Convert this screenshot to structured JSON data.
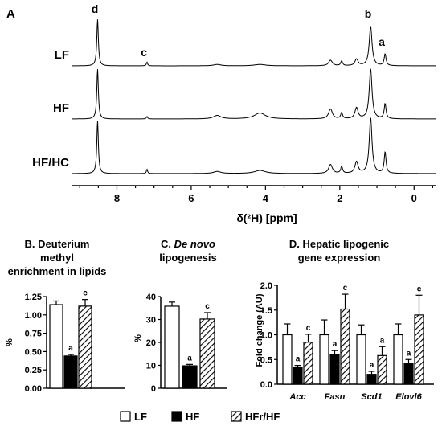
{
  "chart_data": [
    {
      "type": "line",
      "panel_label": "A",
      "xlabel": "δ(²H) [ppm]",
      "x_reversed": true,
      "xlim": [
        9.2,
        -0.6
      ],
      "x_ticks": [
        8,
        6,
        4,
        2,
        0
      ],
      "x_tick_labels": [
        "8",
        "6",
        "4",
        "2",
        "0"
      ],
      "grid": false,
      "peak_labels": [
        {
          "text": "d",
          "ppm": 8.5
        },
        {
          "text": "c",
          "ppm": 7.2
        },
        {
          "text": "b",
          "ppm": 1.15
        },
        {
          "text": "a",
          "ppm": 0.78
        }
      ],
      "series": [
        {
          "name": "LF",
          "peaks": [
            {
              "ppm": 8.52,
              "height": 1.0
            },
            {
              "ppm": 7.19,
              "height": 0.08
            },
            {
              "ppm": 5.3,
              "height": 0.03
            },
            {
              "ppm": 4.15,
              "height": 0.03
            },
            {
              "ppm": 2.25,
              "height": 0.12
            },
            {
              "ppm": 1.95,
              "height": 0.1
            },
            {
              "ppm": 1.55,
              "height": 0.14
            },
            {
              "ppm": 1.17,
              "height": 0.85
            },
            {
              "ppm": 0.78,
              "height": 0.25
            }
          ]
        },
        {
          "name": "HF",
          "peaks": [
            {
              "ppm": 8.52,
              "height": 1.0
            },
            {
              "ppm": 7.19,
              "height": 0.05
            },
            {
              "ppm": 5.3,
              "height": 0.07
            },
            {
              "ppm": 4.15,
              "height": 0.12
            },
            {
              "ppm": 2.25,
              "height": 0.2
            },
            {
              "ppm": 1.95,
              "height": 0.12
            },
            {
              "ppm": 1.55,
              "height": 0.22
            },
            {
              "ppm": 1.17,
              "height": 1.0
            },
            {
              "ppm": 0.78,
              "height": 0.3
            }
          ]
        },
        {
          "name": "HF/HC",
          "peaks": [
            {
              "ppm": 8.52,
              "height": 1.0
            },
            {
              "ppm": 7.19,
              "height": 0.08
            },
            {
              "ppm": 5.3,
              "height": 0.04
            },
            {
              "ppm": 4.15,
              "height": 0.06
            },
            {
              "ppm": 2.25,
              "height": 0.17
            },
            {
              "ppm": 1.95,
              "height": 0.13
            },
            {
              "ppm": 1.55,
              "height": 0.22
            },
            {
              "ppm": 1.17,
              "height": 1.05
            },
            {
              "ppm": 0.78,
              "height": 0.4
            }
          ]
        }
      ]
    },
    {
      "type": "bar",
      "panel_label": "B.",
      "title": [
        "B. Deuterium",
        "methyl",
        "enrichment in lipids"
      ],
      "ylabel": "%",
      "ylim": [
        0,
        1.25
      ],
      "y_ticks": [
        0.0,
        0.25,
        0.5,
        0.75,
        1.0,
        1.25
      ],
      "y_tick_labels": [
        "0.00",
        "0.25",
        "0.50",
        "0.75",
        "1.00",
        "1.25"
      ],
      "groups": [
        "LF",
        "HF",
        "HFr/HF"
      ],
      "values": [
        1.14,
        0.44,
        1.12
      ],
      "errors": [
        0.05,
        0.02,
        0.09
      ],
      "sig_labels": [
        "",
        "a",
        "c"
      ]
    },
    {
      "type": "bar",
      "panel_label": "C.",
      "title": [
        "C. De novo",
        "lipogenesis"
      ],
      "ylabel": "%",
      "ylim": [
        0,
        40
      ],
      "y_ticks": [
        0,
        10,
        20,
        30,
        40
      ],
      "y_tick_labels": [
        "0",
        "10",
        "20",
        "30",
        "40"
      ],
      "groups": [
        "LF",
        "HF",
        "HFr/HF"
      ],
      "values": [
        35.8,
        9.8,
        30.2
      ],
      "errors": [
        1.8,
        0.6,
        2.8
      ],
      "sig_labels": [
        "",
        "a",
        "c"
      ]
    },
    {
      "type": "bar",
      "panel_label": "D.",
      "title": [
        "D. Hepatic lipogenic",
        "gene expression"
      ],
      "ylabel": "Fold change (AU)",
      "ylim": [
        0,
        2.0
      ],
      "y_ticks": [
        0.0,
        0.5,
        1.0,
        1.5,
        2.0
      ],
      "y_tick_labels": [
        "0.0",
        "0.5",
        "1.0",
        "1.5",
        "2.0"
      ],
      "categories": [
        "Acc",
        "Fasn",
        "Scd1",
        "Elovl6"
      ],
      "series": [
        {
          "name": "LF",
          "values": [
            1.0,
            1.0,
            1.0,
            1.0
          ],
          "errors": [
            0.22,
            0.3,
            0.2,
            0.22
          ],
          "sig_labels": [
            "",
            "",
            "",
            ""
          ]
        },
        {
          "name": "HF",
          "values": [
            0.34,
            0.6,
            0.2,
            0.42
          ],
          "errors": [
            0.04,
            0.08,
            0.06,
            0.08
          ],
          "sig_labels": [
            "a",
            "a",
            "a",
            "a"
          ]
        },
        {
          "name": "HFr/HF",
          "values": [
            0.85,
            1.52,
            0.58,
            1.4
          ],
          "errors": [
            0.16,
            0.3,
            0.18,
            0.4
          ],
          "sig_labels": [
            "c",
            "c",
            "a",
            "c"
          ]
        }
      ]
    }
  ],
  "legend": {
    "placement": "bottom",
    "entries": [
      {
        "label": "LF",
        "fill": "white"
      },
      {
        "label": "HF",
        "fill": "black"
      },
      {
        "label": "HFr/HF",
        "fill": "hatched"
      }
    ]
  },
  "colors": {
    "ink": "#000000",
    "background": "#ffffff"
  }
}
